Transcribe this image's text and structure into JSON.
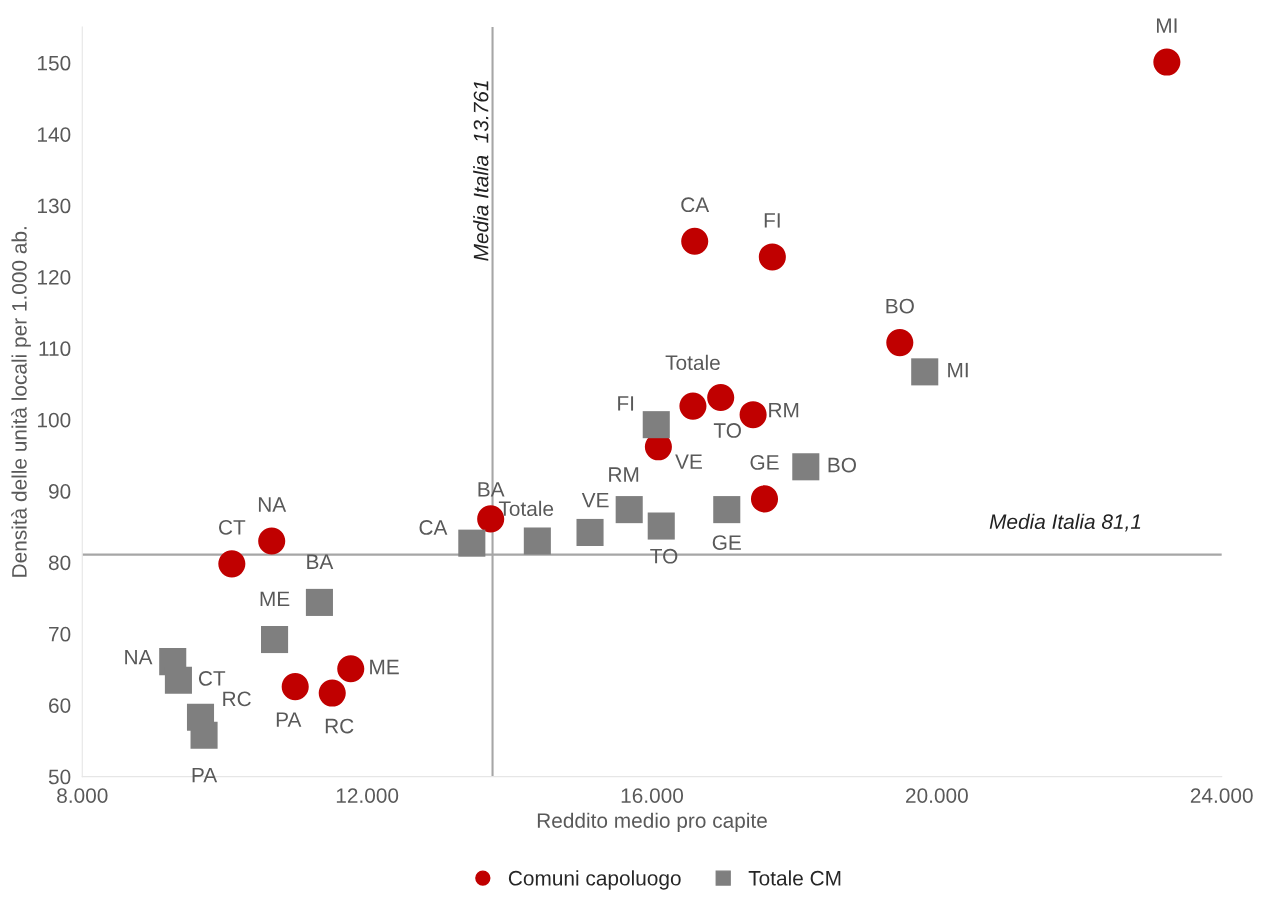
{
  "chart_data": {
    "type": "scatter",
    "xlabel": "Reddito medio pro capite",
    "ylabel": "Densità delle unità locali per 1.000 ab.",
    "xlim": [
      8000,
      24000
    ],
    "xticks": [
      {
        "value": 8000,
        "label": "8.000"
      },
      {
        "value": 12000,
        "label": "12.000"
      },
      {
        "value": 16000,
        "label": "16.000"
      },
      {
        "value": 20000,
        "label": "20.000"
      },
      {
        "value": 24000,
        "label": "24.000"
      }
    ],
    "ylim": [
      50,
      155
    ],
    "yticks": [
      50,
      60,
      70,
      80,
      90,
      100,
      110,
      120,
      130,
      140,
      150
    ],
    "grid": false,
    "legend": "bottom",
    "series": [
      {
        "name": "Comuni capoluogo",
        "color": "#c00000",
        "marker": "circle",
        "x": [
          23230,
          16600,
          17690,
          19480,
          16575,
          16965,
          17420,
          16090,
          17580,
          13735,
          10660,
          10100,
          11770,
          10990,
          11510
        ],
        "values": [
          150.1,
          125,
          122.8,
          110.8,
          101.9,
          103.1,
          100.7,
          96.2,
          88.9,
          86.1,
          83.0,
          79.8,
          65.1,
          62.6,
          61.7
        ]
      },
      {
        "name": "Totale CM",
        "color": "#7f7f7f",
        "marker": "square",
        "x": [
          19830,
          18160,
          16060,
          15680,
          17050,
          16130,
          15130,
          14390,
          13470,
          11330,
          10700,
          9270,
          9350,
          9660,
          9710
        ],
        "values": [
          106.7,
          93.4,
          99.3,
          87.4,
          87.4,
          85.1,
          84.2,
          83.0,
          82.7,
          74.4,
          69.2,
          66.1,
          63.5,
          58.3,
          55.8
        ]
      }
    ],
    "ref_lines": [
      {
        "axis": "x",
        "value": 13761,
        "label": "Media Italia  13.761",
        "color": "#a6a6a6"
      },
      {
        "axis": "y",
        "value": 81.1,
        "label": "Media Italia 81,1",
        "color": "#a6a6a6"
      }
    ],
    "annotations": [
      {
        "text": "MI",
        "x": 23230,
        "y": 150.1
      },
      {
        "text": "CA",
        "x": 16600,
        "y": 125
      },
      {
        "text": "FI",
        "x": 17690,
        "y": 122.8
      },
      {
        "text": "BO",
        "x": 19480,
        "y": 110.8
      },
      {
        "text": "Totale",
        "x": 16575,
        "y": 101.9
      },
      {
        "text": "TO",
        "x": 16965,
        "y": 103.1
      },
      {
        "text": "RM",
        "x": 17420,
        "y": 100.7
      },
      {
        "text": "VE",
        "x": 16090,
        "y": 96.2
      },
      {
        "text": "GE",
        "x": 17580,
        "y": 88.9
      },
      {
        "text": "BA",
        "x": 13735,
        "y": 86.1
      },
      {
        "text": "NA",
        "x": 10660,
        "y": 83.0
      },
      {
        "text": "CT",
        "x": 10100,
        "y": 79.8
      },
      {
        "text": "ME",
        "x": 11770,
        "y": 65.1
      },
      {
        "text": "PA",
        "x": 10990,
        "y": 62.6
      },
      {
        "text": "RC",
        "x": 11510,
        "y": 61.7
      },
      {
        "text": "MI",
        "x": 19830,
        "y": 106.7
      },
      {
        "text": "BO",
        "x": 18160,
        "y": 93.4
      },
      {
        "text": "FI",
        "x": 16060,
        "y": 99.3
      },
      {
        "text": "RM",
        "x": 15680,
        "y": 87.4
      },
      {
        "text": "GE",
        "x": 17050,
        "y": 87.4
      },
      {
        "text": "TO",
        "x": 16130,
        "y": 85.1
      },
      {
        "text": "VE",
        "x": 15130,
        "y": 84.2
      },
      {
        "text": "Totale",
        "x": 14390,
        "y": 83.0
      },
      {
        "text": "CA",
        "x": 13470,
        "y": 82.7
      },
      {
        "text": "BA",
        "x": 11330,
        "y": 74.4
      },
      {
        "text": "ME",
        "x": 10700,
        "y": 69.2
      },
      {
        "text": "NA",
        "x": 9270,
        "y": 66.1
      },
      {
        "text": "CT",
        "x": 9350,
        "y": 63.5
      },
      {
        "text": "RC",
        "x": 9660,
        "y": 58.3
      },
      {
        "text": "PA",
        "x": 9710,
        "y": 55.8
      }
    ]
  }
}
